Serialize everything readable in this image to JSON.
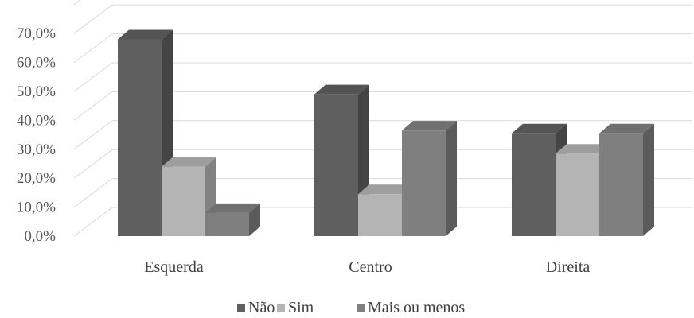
{
  "chart_data": {
    "type": "bar",
    "style": "3d-clustered-column",
    "categories": [
      "Esquerda",
      "Centro",
      "Direita"
    ],
    "series": [
      {
        "name": "Não",
        "values": [
          68.0,
          49.0,
          35.5
        ],
        "color": "#5f5f5f"
      },
      {
        "name": "Sim",
        "values": [
          24.0,
          14.5,
          28.5
        ],
        "color": "#b4b4b4"
      },
      {
        "name": "Mais ou menos",
        "values": [
          8.0,
          36.5,
          35.5
        ],
        "color": "#7f7f7f"
      }
    ],
    "yticks": [
      "0,0%",
      "10,0%",
      "20,0%",
      "30,0%",
      "40,0%",
      "50,0%",
      "60,0%",
      "70,0%"
    ],
    "ylim": [
      0,
      70
    ],
    "grid": true,
    "legend_position": "bottom"
  }
}
